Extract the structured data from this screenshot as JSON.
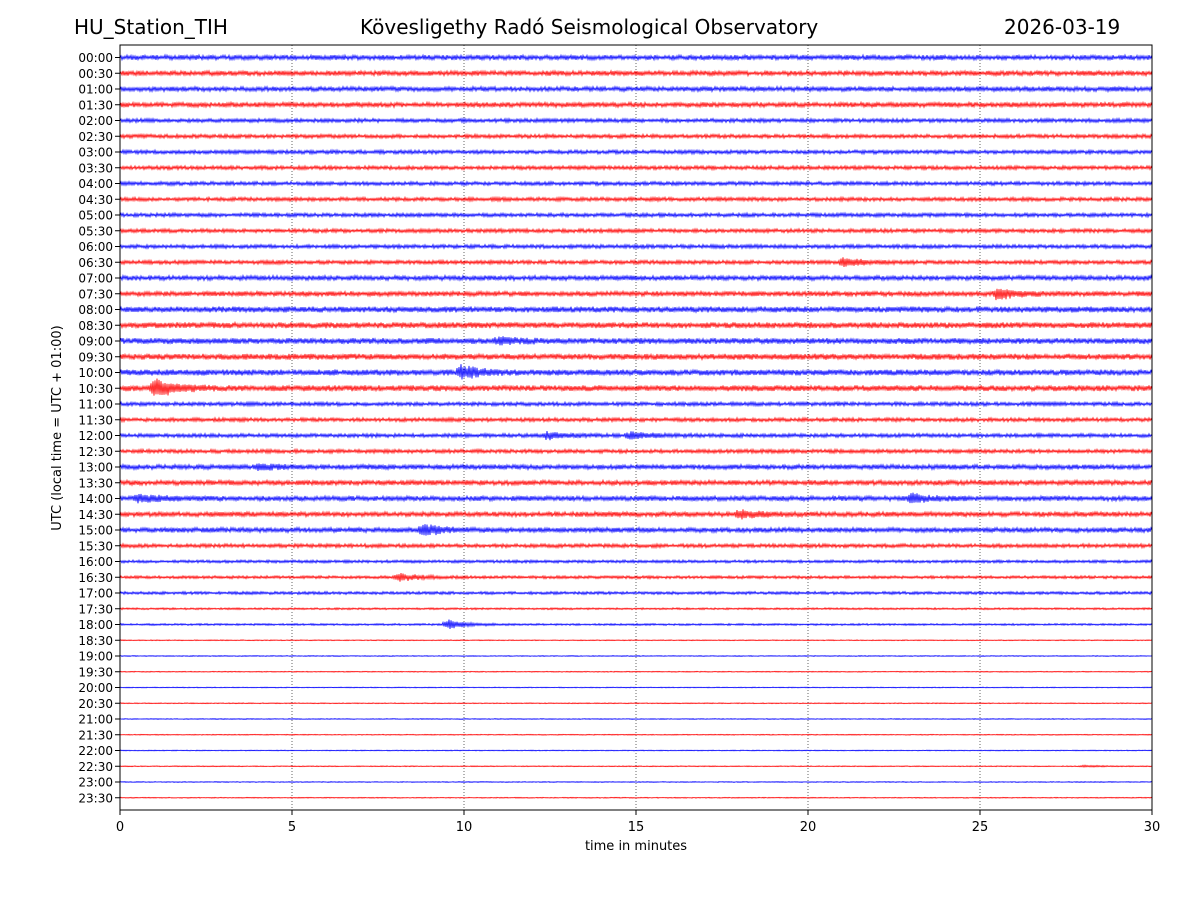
{
  "header": {
    "station": "HU_Station_TIH",
    "observatory": "Kövesligethy Radó Seismological Observatory",
    "date": "2026-03-19"
  },
  "chart_data": {
    "type": "line",
    "title": "Kövesligethy Radó Seismological Observatory",
    "xlabel": "time in minutes",
    "ylabel": "UTC (local time = UTC + 01:00)",
    "xlim": [
      0,
      30
    ],
    "xticks": [
      0,
      5,
      10,
      15,
      20,
      25,
      30
    ],
    "grid": "vertical dotted at each x tick",
    "colors": [
      "#0000ff",
      "#ff0000"
    ],
    "rows": [
      "00:00",
      "00:30",
      "01:00",
      "01:30",
      "02:00",
      "02:30",
      "03:00",
      "03:30",
      "04:00",
      "04:30",
      "05:00",
      "05:30",
      "06:00",
      "06:30",
      "07:00",
      "07:30",
      "08:00",
      "08:30",
      "09:00",
      "09:30",
      "10:00",
      "10:30",
      "11:00",
      "11:30",
      "12:00",
      "12:30",
      "13:00",
      "13:30",
      "14:00",
      "14:30",
      "15:00",
      "15:30",
      "16:00",
      "16:30",
      "17:00",
      "17:30",
      "18:00",
      "18:30",
      "19:00",
      "19:30",
      "20:00",
      "20:30",
      "21:00",
      "21:30",
      "22:00",
      "22:30",
      "23:00",
      "23:30"
    ],
    "noise_level": [
      5,
      5,
      5,
      5,
      4,
      4,
      4,
      4,
      4,
      4,
      4,
      4,
      4,
      4,
      5,
      5,
      6,
      6,
      6,
      6,
      6,
      6,
      4,
      4,
      4,
      4,
      5,
      5,
      5,
      5,
      5,
      4,
      3,
      3,
      3,
      2,
      2,
      1,
      1,
      1,
      1,
      1,
      1,
      1,
      1,
      1,
      1,
      1
    ],
    "events": [
      {
        "row": "06:30",
        "minute": 21.0,
        "amplitude": 8
      },
      {
        "row": "07:30",
        "minute": 25.5,
        "amplitude": 11
      },
      {
        "row": "09:00",
        "minute": 11.0,
        "amplitude": 7
      },
      {
        "row": "10:00",
        "minute": 9.9,
        "amplitude": 13
      },
      {
        "row": "10:30",
        "minute": 1.0,
        "amplitude": 18
      },
      {
        "row": "12:00",
        "minute": 12.4,
        "amplitude": 7
      },
      {
        "row": "12:00",
        "minute": 14.8,
        "amplitude": 7
      },
      {
        "row": "13:00",
        "minute": 4.0,
        "amplitude": 5
      },
      {
        "row": "14:00",
        "minute": 0.5,
        "amplitude": 9
      },
      {
        "row": "14:00",
        "minute": 23.0,
        "amplitude": 9
      },
      {
        "row": "14:30",
        "minute": 18.0,
        "amplitude": 8
      },
      {
        "row": "15:00",
        "minute": 8.8,
        "amplitude": 12
      },
      {
        "row": "16:30",
        "minute": 8.1,
        "amplitude": 8
      },
      {
        "row": "18:00",
        "minute": 9.5,
        "amplitude": 9
      },
      {
        "row": "22:30",
        "minute": 28.0,
        "amplitude": 2
      }
    ]
  }
}
